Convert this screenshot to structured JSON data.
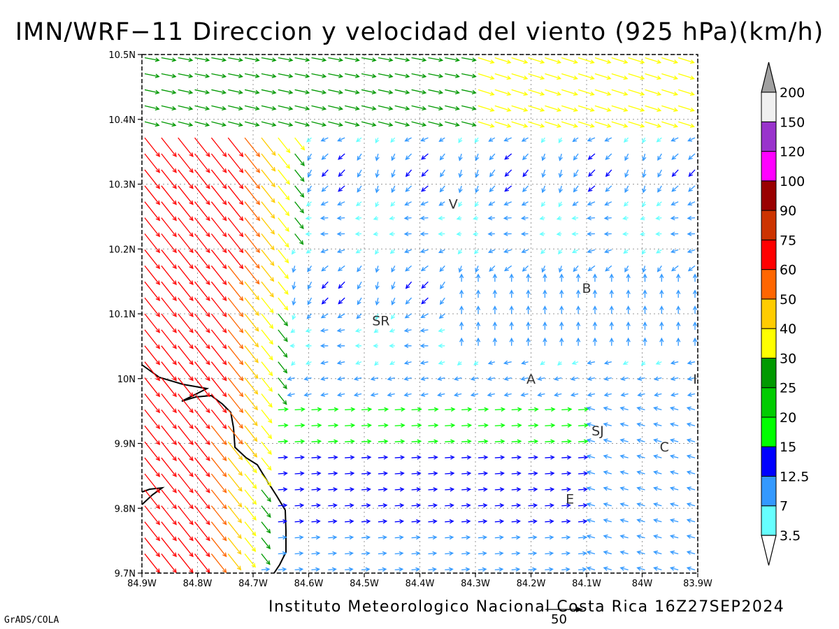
{
  "title": "IMN/WRF−11 Direccion y velocidad del viento (925 hPa)(km/h)",
  "credit": "Instituto Meteorologico Nacional Costa Rica 16Z27SEP2024",
  "software": "GrADS/COLA",
  "vector_scale_label": "50",
  "map": {
    "lon_range": [
      -84.9,
      -83.9
    ],
    "lat_range": [
      9.7,
      10.5
    ],
    "x_ticks": [
      {
        "lon": -84.9,
        "label": "84.9W"
      },
      {
        "lon": -84.8,
        "label": "84.8W"
      },
      {
        "lon": -84.7,
        "label": "84.7W"
      },
      {
        "lon": -84.6,
        "label": "84.6W"
      },
      {
        "lon": -84.5,
        "label": "84.5W"
      },
      {
        "lon": -84.4,
        "label": "84.4W"
      },
      {
        "lon": -84.3,
        "label": "84.3W"
      },
      {
        "lon": -84.2,
        "label": "84.2W"
      },
      {
        "lon": -84.1,
        "label": "84.1W"
      },
      {
        "lon": -84.0,
        "label": "84W"
      },
      {
        "lon": -83.9,
        "label": "83.9W"
      }
    ],
    "y_ticks": [
      {
        "lat": 10.5,
        "label": "10.5N"
      },
      {
        "lat": 10.4,
        "label": "10.4N"
      },
      {
        "lat": 10.3,
        "label": "10.3N"
      },
      {
        "lat": 10.2,
        "label": "10.2N"
      },
      {
        "lat": 10.1,
        "label": "10.1N"
      },
      {
        "lat": 10.0,
        "label": "10N"
      },
      {
        "lat": 9.9,
        "label": "9.9N"
      },
      {
        "lat": 9.8,
        "label": "9.8N"
      },
      {
        "lat": 9.7,
        "label": "9.7N"
      }
    ],
    "places": [
      {
        "label": "V",
        "lon": -84.34,
        "lat": 10.27
      },
      {
        "label": "B",
        "lon": -84.1,
        "lat": 10.14
      },
      {
        "label": "SR",
        "lon": -84.47,
        "lat": 10.09
      },
      {
        "label": "A",
        "lon": -84.2,
        "lat": 10.0
      },
      {
        "label": "I",
        "lon": -83.905,
        "lat": 10.0
      },
      {
        "label": "SJ",
        "lon": -84.08,
        "lat": 9.92
      },
      {
        "label": "C",
        "lon": -83.96,
        "lat": 9.895
      },
      {
        "label": "E",
        "lon": -84.13,
        "lat": 9.815
      }
    ]
  },
  "colorbar": {
    "colors": [
      "#66ffff",
      "#3399ff",
      "#0000ff",
      "#00ff00",
      "#00cc00",
      "#009900",
      "#ffff00",
      "#ffcc00",
      "#ff6600",
      "#ff0000",
      "#cc3300",
      "#990000",
      "#ff00ff",
      "#9933cc",
      "#f0f0f0"
    ],
    "labels": [
      "3.5",
      "7",
      "12.5",
      "15",
      "20",
      "25",
      "30",
      "40",
      "50",
      "60",
      "75",
      "90",
      "100",
      "120",
      "150",
      "200"
    ],
    "top_triangle_color": "#a0a0a0",
    "bottom_triangle_color": "#ffffff"
  }
}
